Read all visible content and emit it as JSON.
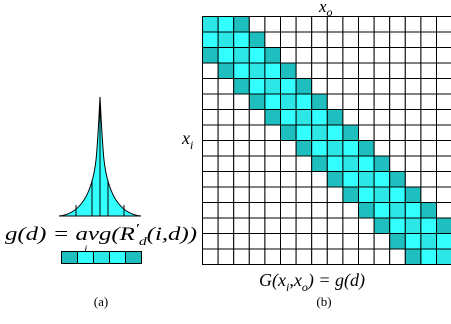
{
  "panel_a": {
    "formula": "g(d) = avg(R′d(i,d))",
    "caption": "(a)",
    "cell_shades": [
      "dark",
      "light",
      "mid",
      "light",
      "dark"
    ]
  },
  "panel_b": {
    "top_label": "xo",
    "left_label": "xi",
    "bottom_formula": "G(xi,xo) = g(d)",
    "caption": "(b)",
    "rows": 16,
    "cols": 16,
    "band_shades": [
      "dark",
      "light",
      "mid",
      "light",
      "dark"
    ]
  },
  "colors": {
    "dark": "#1fbfbf",
    "light": "#33ffff",
    "mid": "#2de6e6",
    "grid": "#000000",
    "background": "#ffffff"
  }
}
